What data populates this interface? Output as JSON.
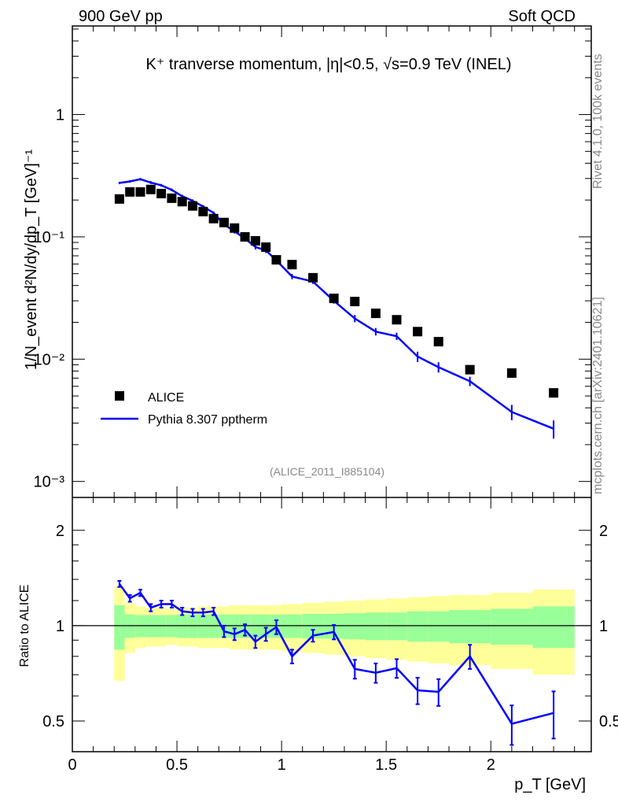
{
  "header": {
    "left": "900 GeV pp",
    "right": "Soft QCD"
  },
  "side": {
    "rivet": "Rivet 4.1.0,  100k events",
    "mcplots": "mcplots.cern.ch [arXiv:2401.10621]"
  },
  "analysis_id": "(ALICE_2011_I885104)",
  "chart_data": [
    {
      "type": "scatter",
      "title": "K⁺ tranverse momentum, |η|<0.5, √s=0.9 TeV (INEL)",
      "ylabel": "1/N_event d²N/dy/dp_T [GeV]⁻¹",
      "xlabel": "p_T [GeV]",
      "yscale": "log",
      "xlim": [
        0,
        2.48
      ],
      "ylim": [
        0.00074,
        5.3
      ],
      "x_ticks": [
        "0",
        "0.5",
        "1",
        "1.5",
        "2"
      ],
      "y_ticks": [
        "10⁻³",
        "10⁻²",
        "10⁻¹",
        "1"
      ],
      "legend": {
        "placement": "bottom-left",
        "entries": [
          "ALICE",
          "Pythia 8.307 pptherm"
        ]
      },
      "x": [
        0.225,
        0.275,
        0.325,
        0.375,
        0.425,
        0.475,
        0.525,
        0.575,
        0.625,
        0.675,
        0.725,
        0.775,
        0.825,
        0.875,
        0.925,
        0.975,
        1.05,
        1.15,
        1.25,
        1.35,
        1.45,
        1.55,
        1.65,
        1.75,
        1.9,
        2.1,
        2.3
      ],
      "series": [
        {
          "name": "ALICE",
          "color": "#000000",
          "values": [
            0.204,
            0.233,
            0.233,
            0.244,
            0.226,
            0.207,
            0.194,
            0.179,
            0.161,
            0.141,
            0.131,
            0.118,
            0.1,
            0.0928,
            0.0824,
            0.0649,
            0.0593,
            0.0463,
            0.0314,
            0.0296,
            0.0237,
            0.021,
            0.0168,
            0.0139,
            0.0082,
            0.0077,
            0.0053
          ]
        },
        {
          "name": "Pythia 8.307 pptherm",
          "color": "#0000ff",
          "values": [
            0.276,
            0.284,
            0.296,
            0.278,
            0.264,
            0.242,
            0.215,
            0.197,
            0.177,
            0.157,
            0.126,
            0.111,
            0.097,
            0.0826,
            0.0775,
            0.0643,
            0.0474,
            0.0431,
            0.03,
            0.0215,
            0.0168,
            0.0154,
            0.0105,
            0.0086,
            0.0066,
            0.0037,
            0.0027
          ]
        }
      ]
    },
    {
      "type": "line",
      "ylabel": "Ratio to ALICE",
      "xlabel": "p_T [GeV]",
      "yscale": "log",
      "ylim": [
        0.4,
        2.54
      ],
      "y_ticks": [
        "0.5",
        "1",
        "2"
      ],
      "bin_edges": [
        0.2,
        0.25,
        0.3,
        0.35,
        0.4,
        0.45,
        0.5,
        0.55,
        0.6,
        0.65,
        0.7,
        0.75,
        0.8,
        0.85,
        0.9,
        0.95,
        1.0,
        1.1,
        1.2,
        1.3,
        1.4,
        1.5,
        1.6,
        1.7,
        1.8,
        2.0,
        2.2,
        2.4
      ],
      "band_stat": [
        0.16,
        0.085,
        0.08,
        0.08,
        0.08,
        0.08,
        0.085,
        0.085,
        0.085,
        0.085,
        0.085,
        0.085,
        0.085,
        0.085,
        0.085,
        0.085,
        0.085,
        0.09,
        0.09,
        0.095,
        0.1,
        0.1,
        0.11,
        0.11,
        0.12,
        0.13,
        0.15
      ],
      "band_total": [
        0.33,
        0.18,
        0.15,
        0.14,
        0.14,
        0.13,
        0.14,
        0.14,
        0.15,
        0.15,
        0.15,
        0.16,
        0.16,
        0.16,
        0.16,
        0.16,
        0.17,
        0.18,
        0.19,
        0.2,
        0.21,
        0.22,
        0.23,
        0.24,
        0.25,
        0.27,
        0.3
      ],
      "ratio": [
        1.355,
        1.22,
        1.27,
        1.14,
        1.17,
        1.17,
        1.11,
        1.1,
        1.1,
        1.11,
        0.96,
        0.94,
        0.97,
        0.89,
        0.94,
        0.99,
        0.8,
        0.93,
        0.955,
        0.73,
        0.71,
        0.734,
        0.625,
        0.618,
        0.8,
        0.49,
        0.53
      ],
      "ratio_err": [
        0.03,
        0.03,
        0.03,
        0.03,
        0.03,
        0.03,
        0.03,
        0.03,
        0.03,
        0.03,
        0.04,
        0.04,
        0.04,
        0.04,
        0.045,
        0.05,
        0.04,
        0.04,
        0.05,
        0.05,
        0.05,
        0.05,
        0.06,
        0.06,
        0.07,
        0.07,
        0.09
      ],
      "color": "#0000ff"
    }
  ]
}
